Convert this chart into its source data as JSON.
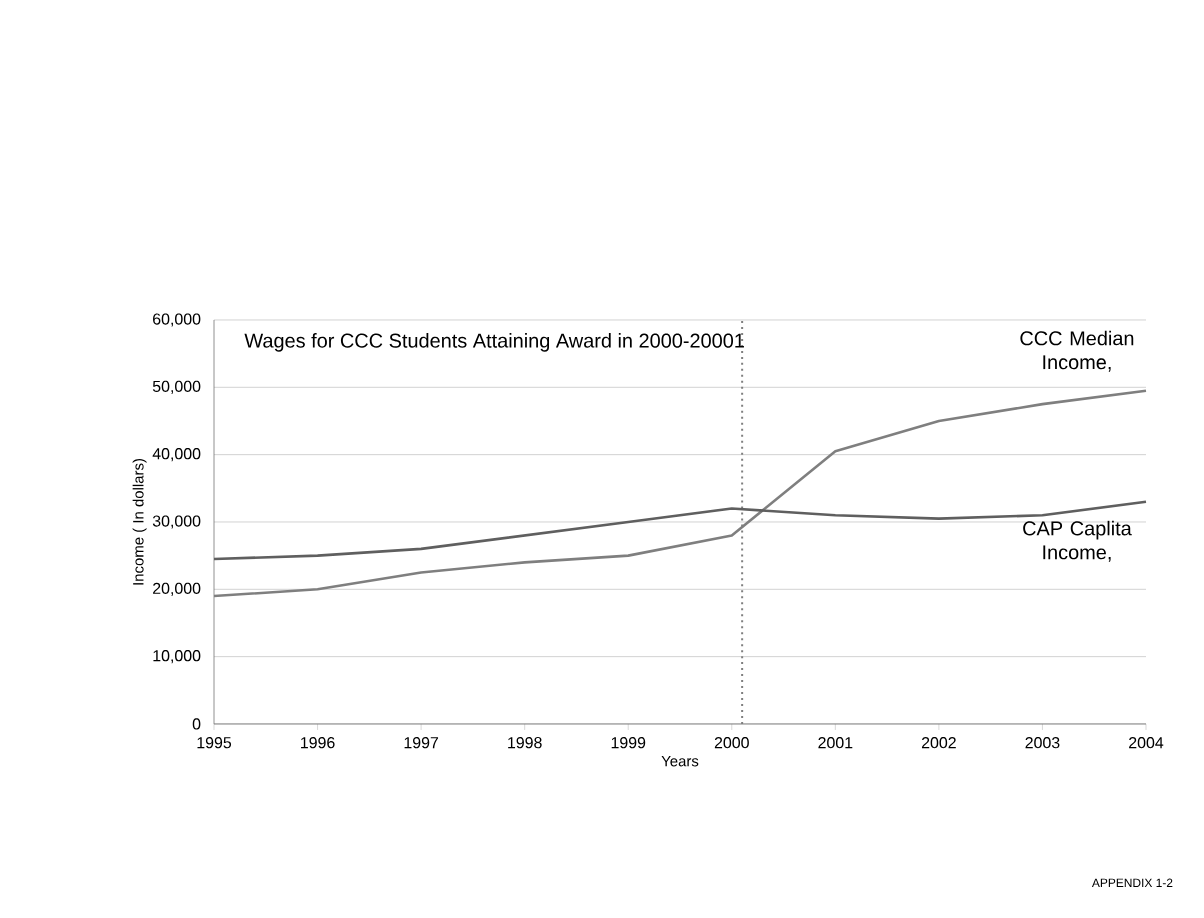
{
  "chart_data": {
    "type": "line",
    "title": "Wages for CCC Students Attaining Award in 2000-20001",
    "xlabel": "Years",
    "ylabel": "Income ( In dollars)",
    "x": [
      1995,
      1996,
      1997,
      1998,
      1999,
      2000,
      2001,
      2002,
      2003,
      2004
    ],
    "series": [
      {
        "name": "CCC Median Income,",
        "color": "#7f7f7f",
        "values": [
          19000,
          20000,
          22500,
          24000,
          25000,
          28000,
          40500,
          45000,
          47500,
          49500
        ]
      },
      {
        "name": "CAP Caplita Income,",
        "color": "#5f5f5f",
        "values": [
          24500,
          25000,
          26000,
          28000,
          30000,
          32000,
          31000,
          30500,
          31000,
          33000
        ]
      }
    ],
    "xlim": [
      1995,
      2004
    ],
    "ylim": [
      0,
      60000
    ],
    "xticks": [
      1995,
      1996,
      1997,
      1998,
      1999,
      2000,
      2001,
      2002,
      2003,
      2004
    ],
    "yticks": [
      {
        "value": 0,
        "label": "0"
      },
      {
        "value": 10000,
        "label": "10,000"
      },
      {
        "value": 20000,
        "label": "20,000"
      },
      {
        "value": 30000,
        "label": "30,000"
      },
      {
        "value": 40000,
        "label": "40,000"
      },
      {
        "value": 50000,
        "label": "50,000"
      },
      {
        "value": 60000,
        "label": "60,000"
      }
    ],
    "ref_lines": [
      {
        "axis": "x",
        "value": 2000.1,
        "color": "#7f7f7f",
        "line_style": "dotted"
      }
    ],
    "grid": "y",
    "marker": "none",
    "line_style": "solid",
    "annotations": [
      "APPENDIX 1-2"
    ]
  }
}
